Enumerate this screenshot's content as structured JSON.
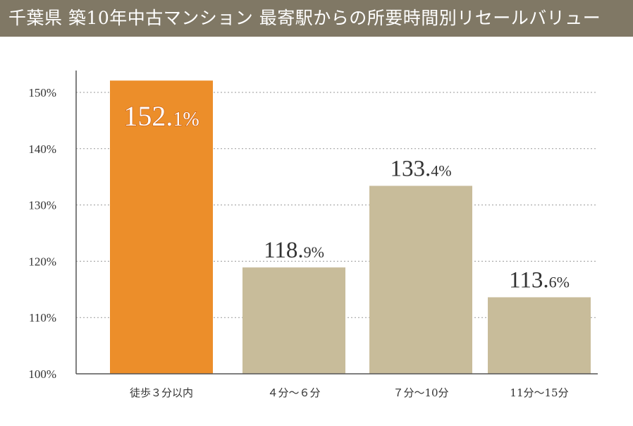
{
  "title": "千葉県 築10年中古マンション 最寄駅からの所要時間別リセールバリュー",
  "chart_data": {
    "type": "bar",
    "categories": [
      "徒歩３分以内",
      "４分～６分",
      "７分～10分",
      "11分～15分"
    ],
    "values": [
      152.1,
      118.9,
      133.4,
      113.6
    ],
    "data_labels": [
      {
        "number": "152.",
        "decimal": "1%"
      },
      {
        "number": "118.",
        "decimal": "9%"
      },
      {
        "number": "133.",
        "decimal": "4%"
      },
      {
        "number": "113.",
        "decimal": "6%"
      }
    ],
    "ylim": [
      100,
      155
    ],
    "yticks": [
      100,
      110,
      120,
      130,
      140,
      150
    ],
    "ytick_labels": [
      "100%",
      "110%",
      "120%",
      "130%",
      "140%",
      "150%"
    ],
    "grid": true,
    "highlight_index": 0,
    "colors": {
      "highlight": "#ec8e2a",
      "default": "#c8bc9a",
      "title_bg": "#807865"
    }
  }
}
